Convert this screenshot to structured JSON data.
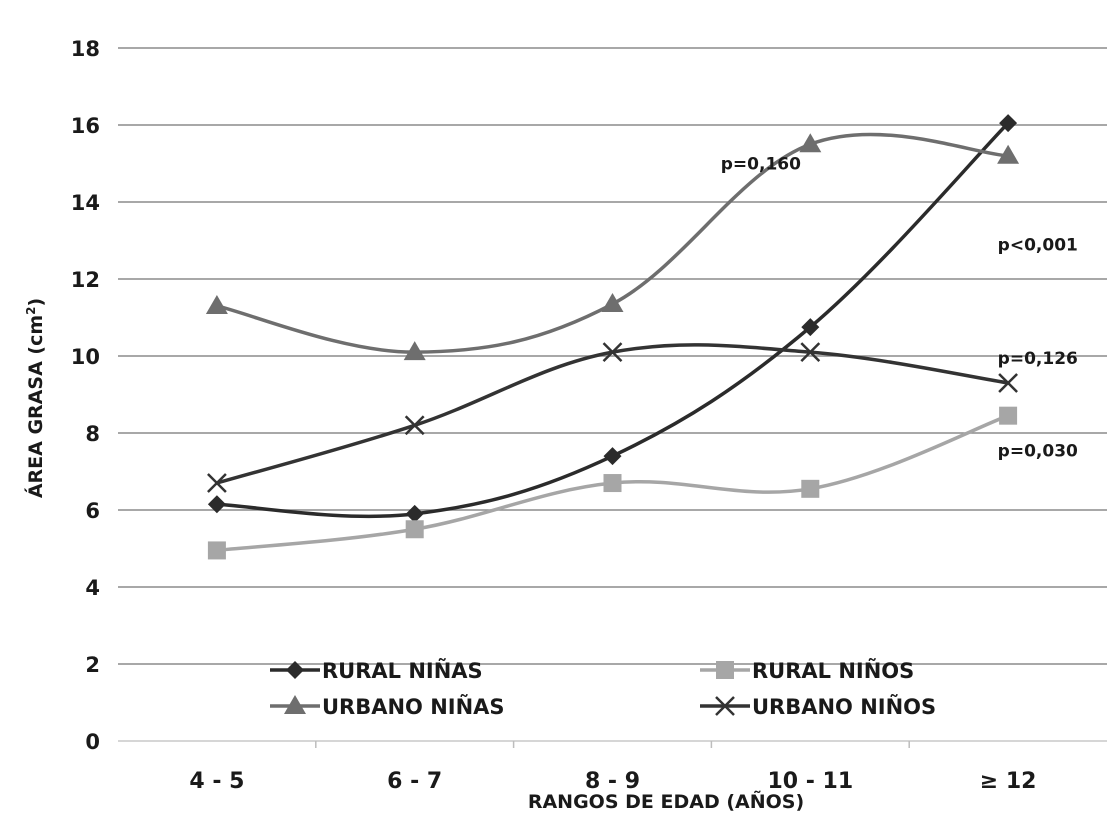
{
  "chart_data": {
    "type": "line",
    "title": "",
    "xlabel": "RANGOS DE EDAD (AÑOS)",
    "ylabel_main": "ÁREA GRASA (cm",
    "ylabel_sup": "2",
    "ylabel_close": ")",
    "ylim": [
      0,
      18
    ],
    "yticks": [
      "0",
      "2",
      "4",
      "6",
      "8",
      "10",
      "12",
      "14",
      "16",
      "18"
    ],
    "categories": [
      "4 - 5",
      "6 - 7",
      "8 - 9",
      "10 - 11",
      "≥ 12"
    ],
    "grid": true,
    "legend_position": "bottom",
    "series": [
      {
        "name": "RURAL NIÑAS",
        "marker": "diamond",
        "color": "#2b2b2b",
        "values": [
          6.15,
          5.9,
          7.4,
          10.75,
          16.05
        ]
      },
      {
        "name": "RURAL NIÑOS",
        "marker": "square",
        "color": "#a6a6a6",
        "values": [
          4.95,
          5.5,
          6.7,
          6.55,
          8.45
        ]
      },
      {
        "name": "URBANO NIÑAS",
        "marker": "triangle",
        "color": "#6e6e6e",
        "values": [
          11.3,
          10.1,
          11.35,
          15.5,
          15.2
        ]
      },
      {
        "name": "URBANO NIÑOS",
        "marker": "cross",
        "color": "#333333",
        "values": [
          6.7,
          8.2,
          10.1,
          10.1,
          9.3
        ]
      }
    ],
    "annotations": [
      {
        "text": "p=0,160",
        "at": [
          2.75,
          15
        ]
      },
      {
        "text": "p<0,001",
        "at": [
          4.15,
          12.9
        ]
      },
      {
        "text": "p=0,126",
        "at": [
          4.15,
          9.95
        ]
      },
      {
        "text": "p=0,030",
        "at": [
          4.15,
          7.55
        ]
      }
    ]
  }
}
